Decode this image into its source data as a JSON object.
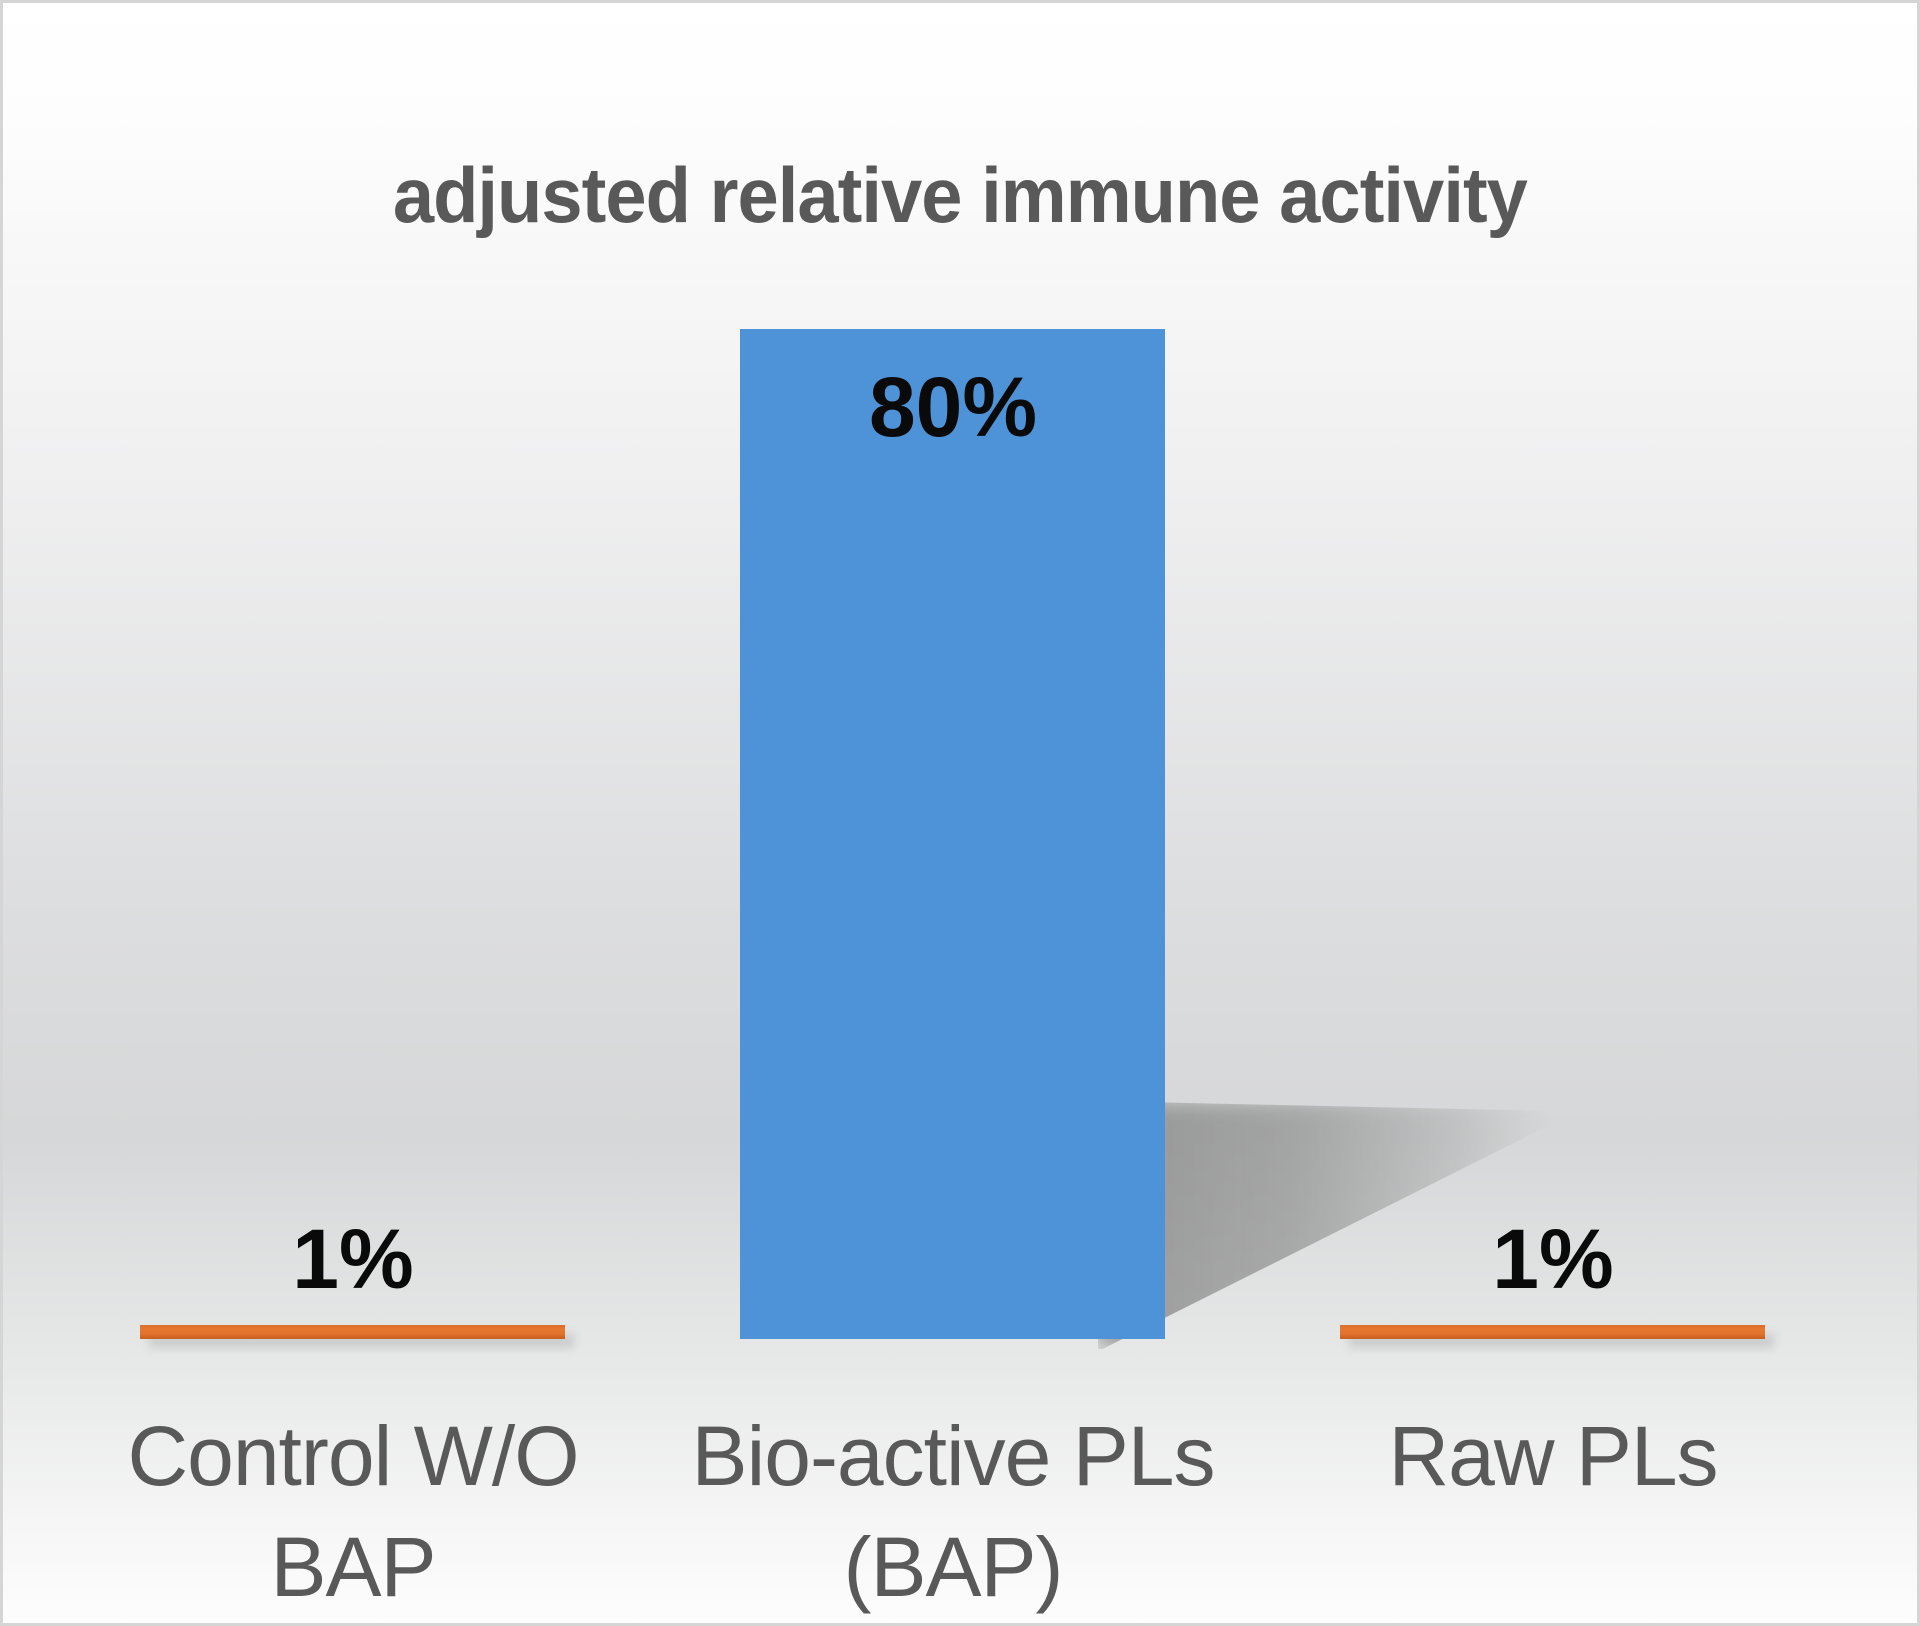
{
  "chart_data": {
    "type": "bar",
    "title": "adjusted relative immune activity",
    "categories": [
      "Control W/O\nBAP",
      "Bio-active PLs\n(BAP)",
      "Raw PLs"
    ],
    "values": [
      1,
      80,
      1
    ],
    "value_labels": [
      "1%",
      "80%",
      "1%"
    ],
    "xlabel": "",
    "ylabel": "",
    "ylim": [
      0,
      80
    ],
    "axes_visible": false,
    "grid": false,
    "legend": "none",
    "point_colors": [
      "#e0722d",
      "#4e92d7",
      "#e0722d"
    ],
    "value_label_positions": [
      "outside-end",
      "inside-end",
      "outside-end"
    ]
  },
  "style": {
    "title_color": "#595959",
    "category_label_color": "#595959",
    "value_label_color": "#0a0a0a",
    "background_top": "#ffffff",
    "background_mid": "#d6d7d8",
    "background_bottom": "#fdfdfd",
    "border_color": "#d5d5d5",
    "shadow_color": "#6e6e6e"
  }
}
